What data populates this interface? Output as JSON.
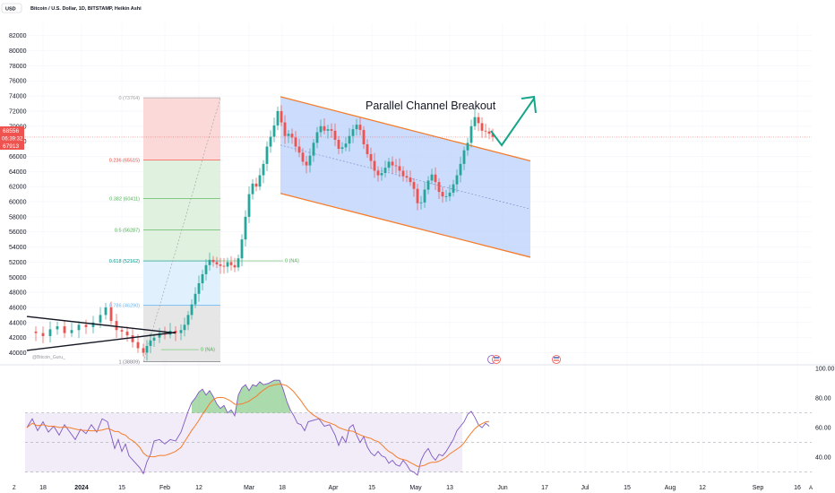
{
  "header": {
    "currency": "USD",
    "symbol_title": "Bitcoin / U.S. Dollar, 1D, BITSTAMP, Heikin Ashi"
  },
  "price_labels": {
    "last_price": "68556",
    "countdown": "06:39:32",
    "prev_price": "67913"
  },
  "annotation": "Parallel Channel Breakout",
  "watermark": "@Bitcoin_Guru_",
  "colors": {
    "bull": "#26a69a",
    "bear": "#ef5350",
    "channel": "#f57c2b",
    "channel_fill": "#bbd0fb",
    "arrow": "#17a589",
    "rsi_line": "#7e57c2",
    "rsi_ma": "#f57c2b"
  },
  "chart_data": [
    {
      "type": "candlestick",
      "title": "Bitcoin / U.S. Dollar, 1D, BITSTAMP, Heikin Ashi",
      "y_axis": {
        "ticks": [
          "82000",
          "80000",
          "78000",
          "76000",
          "74000",
          "72000",
          "70000",
          "68000",
          "66000",
          "64000",
          "62000",
          "60000",
          "58000",
          "56000",
          "54000",
          "52000",
          "50000",
          "48000",
          "46000",
          "44000",
          "42000",
          "40000"
        ],
        "range": [
          39000,
          83000
        ]
      },
      "x_axis": {
        "ticks": [
          "18",
          "2024",
          "15",
          "Feb",
          "12",
          "Mar",
          "18",
          "Apr",
          "15",
          "May",
          "13",
          "Jun",
          "17",
          "Jul",
          "15",
          "Aug",
          "12",
          "Sep",
          "16"
        ]
      },
      "fibonacci": [
        {
          "label": "0 (73764)",
          "price": 73764
        },
        {
          "label": "0.236 (65515)",
          "price": 65515
        },
        {
          "label": "0.382 (60411)",
          "price": 60411
        },
        {
          "label": "0.5 (56287)",
          "price": 56287
        },
        {
          "label": "0.618 (52162)",
          "price": 52162
        },
        {
          "label": "0.786 (46290)",
          "price": 46290
        },
        {
          "label": "1 (38809)",
          "price": 38809
        }
      ],
      "levels": [
        {
          "label": "0 (NA)",
          "price": 52162
        },
        {
          "label": "0 (NA)",
          "price": 40400
        }
      ]
    },
    {
      "type": "line",
      "title": "RSI",
      "y_axis": {
        "ticks": [
          "100.00",
          "80.00",
          "60.00",
          "40.00"
        ],
        "range": [
          25,
          100
        ]
      },
      "bands": {
        "upper": 70,
        "middle": 50,
        "lower": 30
      }
    }
  ]
}
